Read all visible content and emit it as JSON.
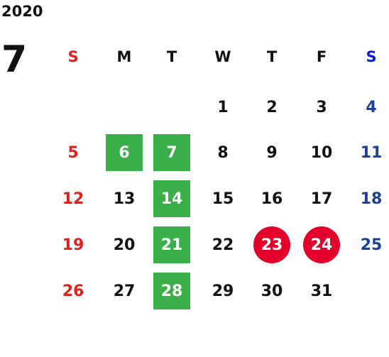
{
  "year": "2020",
  "month": "7",
  "weekdays": [
    "S",
    "M",
    "T",
    "W",
    "T",
    "F",
    "S"
  ],
  "weeks": [
    [
      null,
      null,
      null,
      "1",
      "2",
      "3",
      "4"
    ],
    [
      "5",
      {
        "text": "6",
        "highlight": "green"
      },
      {
        "text": "7",
        "highlight": "green"
      },
      "8",
      "9",
      "10",
      "11"
    ],
    [
      "12",
      "13",
      {
        "text": "14",
        "highlight": "green"
      },
      "15",
      "16",
      "17",
      "18"
    ],
    [
      "19",
      "20",
      {
        "text": "21",
        "highlight": "green"
      },
      "22",
      {
        "text": "23",
        "highlight": "red"
      },
      {
        "text": "24",
        "highlight": "red"
      },
      "25"
    ],
    [
      "26",
      "27",
      {
        "text": "28",
        "highlight": "green"
      },
      "29",
      "30",
      "31",
      null
    ]
  ]
}
